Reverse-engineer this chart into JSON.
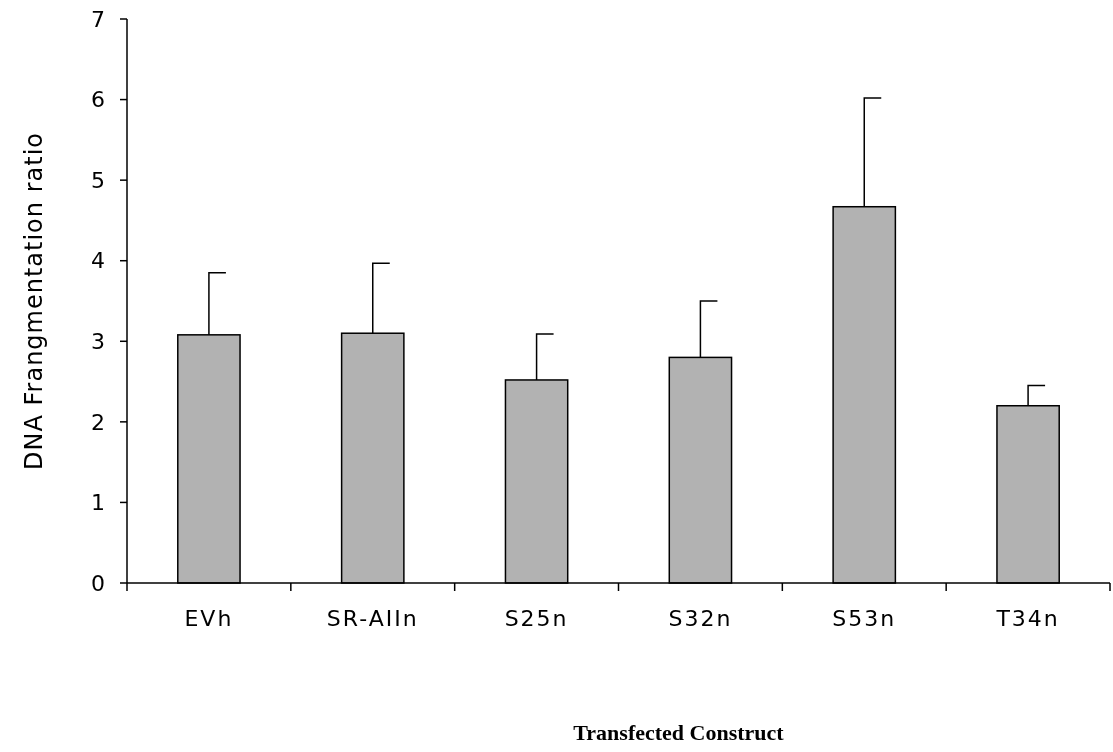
{
  "chart_data": {
    "type": "bar",
    "xlabel": "Transfected Construct",
    "ylabel": "DNA Frangmentation ratio",
    "categories": [
      "EVh",
      "SR-AIIn",
      "S25n",
      "S32n",
      "S53n",
      "T34n"
    ],
    "values": [
      3.08,
      3.1,
      2.52,
      2.8,
      4.67,
      2.2
    ],
    "errors": [
      [
        3.08,
        3.85
      ],
      [
        3.1,
        3.97
      ],
      [
        2.52,
        3.09
      ],
      [
        2.8,
        3.5
      ],
      [
        4.67,
        6.02
      ],
      [
        2.2,
        2.45
      ]
    ],
    "color": "#b2b2b2",
    "ylim": [
      0,
      7
    ],
    "yticks": [
      0,
      1,
      2,
      3,
      4,
      5,
      6,
      7
    ],
    "grid": false
  }
}
